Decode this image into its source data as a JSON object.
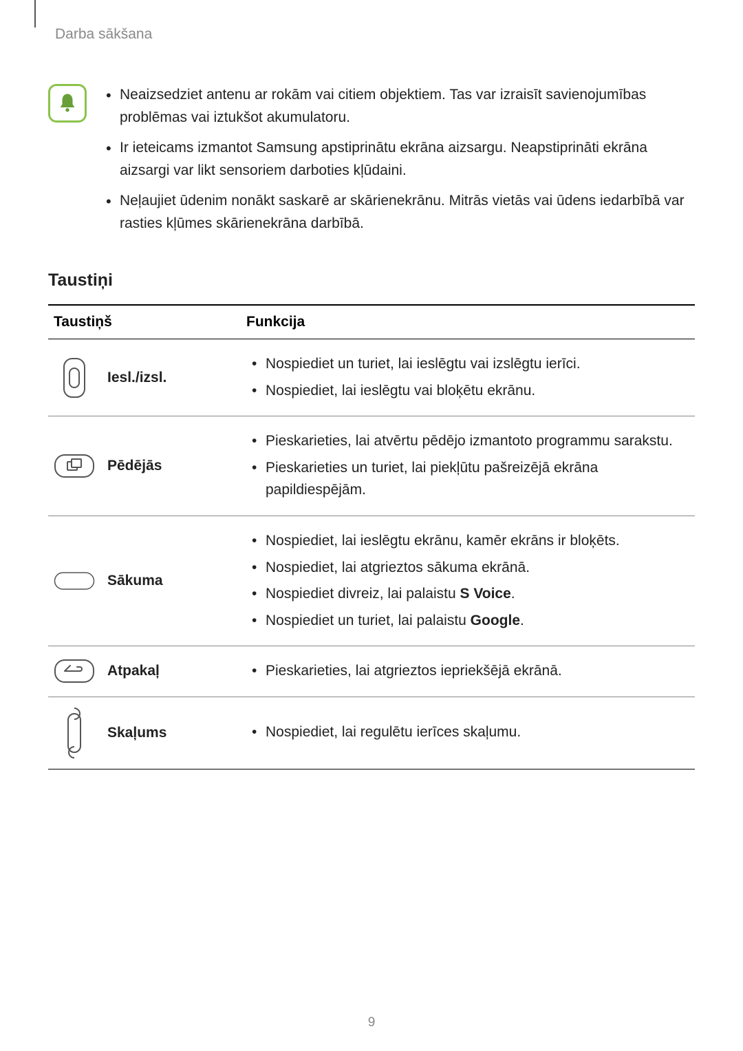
{
  "breadcrumb": "Darba sākšana",
  "notes": [
    "Neaizsedziet antenu ar rokām vai citiem objektiem. Tas var izraisīt savienojumības problēmas vai iztukšot akumulatoru.",
    "Ir ieteicams izmantot Samsung apstiprinātu ekrāna aizsargu. Neapstiprināti ekrāna aizsargi var likt sensoriem darboties kļūdaini.",
    "Neļaujiet ūdenim nonākt saskarē ar skārienekrānu. Mitrās vietās vai ūdens iedarbībā var rasties kļūmes skārienekrāna darbībā."
  ],
  "section_title": "Taustiņi",
  "table": {
    "header_key": "Taustiņš",
    "header_func": "Funkcija",
    "rows": [
      {
        "icon": "power",
        "label": "Iesl./izsl.",
        "funcs": [
          {
            "pre": "Nospiediet un turiet, lai ieslēgtu vai izslēgtu ierīci.",
            "bold": "",
            "post": ""
          },
          {
            "pre": "Nospiediet, lai ieslēgtu vai bloķētu ekrānu.",
            "bold": "",
            "post": ""
          }
        ]
      },
      {
        "icon": "recents",
        "label": "Pēdējās",
        "funcs": [
          {
            "pre": "Pieskarieties, lai atvērtu pēdējo izmantoto programmu sarakstu.",
            "bold": "",
            "post": ""
          },
          {
            "pre": "Pieskarieties un turiet, lai piekļūtu pašreizējā ekrāna papildiespējām.",
            "bold": "",
            "post": ""
          }
        ]
      },
      {
        "icon": "home",
        "label": "Sākuma",
        "funcs": [
          {
            "pre": "Nospiediet, lai ieslēgtu ekrānu, kamēr ekrāns ir bloķēts.",
            "bold": "",
            "post": ""
          },
          {
            "pre": "Nospiediet, lai atgrieztos sākuma ekrānā.",
            "bold": "",
            "post": ""
          },
          {
            "pre": "Nospiediet divreiz, lai palaistu ",
            "bold": "S Voice",
            "post": "."
          },
          {
            "pre": "Nospiediet un turiet, lai palaistu ",
            "bold": "Google",
            "post": "."
          }
        ]
      },
      {
        "icon": "back",
        "label": "Atpakaļ",
        "funcs": [
          {
            "pre": "Pieskarieties, lai atgrieztos iepriekšējā ekrānā.",
            "bold": "",
            "post": ""
          }
        ]
      },
      {
        "icon": "volume",
        "label": "Skaļums",
        "funcs": [
          {
            "pre": "Nospiediet, lai regulētu ierīces skaļumu.",
            "bold": "",
            "post": ""
          }
        ]
      }
    ]
  },
  "page_number": "9",
  "colors": {
    "note_icon_border": "#8bc34a",
    "note_icon_fill": "#689f38",
    "text": "#222222",
    "muted": "#888888",
    "stroke": "#555555"
  }
}
